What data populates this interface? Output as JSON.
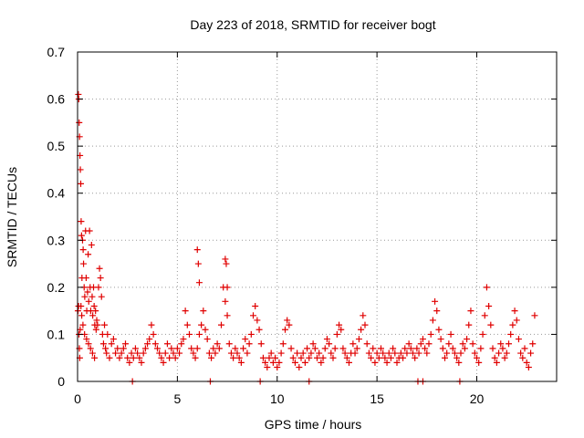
{
  "chart_data": {
    "type": "scatter",
    "title": "Day 223 of 2018, SRMTID for receiver bogt",
    "xlabel": "GPS time / hours",
    "ylabel": "SRMTID / TECUs",
    "xlim": [
      0,
      24
    ],
    "ylim": [
      0,
      0.7
    ],
    "xticks": [
      0,
      5,
      10,
      15,
      20
    ],
    "yticks": [
      0,
      0.1,
      0.2,
      0.3,
      0.4,
      0.5,
      0.6,
      0.7
    ],
    "xtick_labels": [
      "0",
      "5",
      "10",
      "15",
      "20"
    ],
    "ytick_labels": [
      "0",
      "0.1",
      "0.2",
      "0.3",
      "0.4",
      "0.5",
      "0.6",
      "0.7"
    ],
    "grid": true,
    "marker": "plus",
    "marker_color": "#e00000",
    "series": [
      {
        "name": "SRMTID",
        "x": [
          0.02,
          0.04,
          0.06,
          0.08,
          0.1,
          0.12,
          0.14,
          0.16,
          0.18,
          0.2,
          0.22,
          0.25,
          0.28,
          0.3,
          0.33,
          0.36,
          0.4,
          0.43,
          0.46,
          0.5,
          0.53,
          0.56,
          0.6,
          0.63,
          0.66,
          0.7,
          0.73,
          0.76,
          0.8,
          0.83,
          0.86,
          0.9,
          0.93,
          0.96,
          1.0,
          1.05,
          1.1,
          1.15,
          1.2,
          1.25,
          1.3,
          1.35,
          1.4,
          1.45,
          1.5,
          1.6,
          1.7,
          1.8,
          1.9,
          2.0,
          2.1,
          2.2,
          2.3,
          2.4,
          2.5,
          2.6,
          2.7,
          2.8,
          2.9,
          3.0,
          3.1,
          3.2,
          3.3,
          3.4,
          3.5,
          3.6,
          3.7,
          3.8,
          3.9,
          4.0,
          4.1,
          4.2,
          4.3,
          4.4,
          4.5,
          4.6,
          4.7,
          4.8,
          4.9,
          5.0,
          5.1,
          5.2,
          5.3,
          5.4,
          5.5,
          5.6,
          5.7,
          5.8,
          5.9,
          6.0,
          6.1,
          6.2,
          6.3,
          6.4,
          6.5,
          6.6,
          6.7,
          6.8,
          6.9,
          7.0,
          7.1,
          7.2,
          7.3,
          7.4,
          7.5,
          7.6,
          7.7,
          7.8,
          7.9,
          8.0,
          8.1,
          8.2,
          8.3,
          8.4,
          8.5,
          8.6,
          8.7,
          8.8,
          8.9,
          9.0,
          9.1,
          9.2,
          9.3,
          9.4,
          9.5,
          9.6,
          9.7,
          9.8,
          9.9,
          10.0,
          10.1,
          10.2,
          10.3,
          10.4,
          10.5,
          10.6,
          10.7,
          10.8,
          10.9,
          11.0,
          11.1,
          11.2,
          11.3,
          11.4,
          11.5,
          11.6,
          11.7,
          11.8,
          11.9,
          12.0,
          12.1,
          12.2,
          12.3,
          12.4,
          12.5,
          12.6,
          12.7,
          12.8,
          12.9,
          13.0,
          13.1,
          13.2,
          13.3,
          13.4,
          13.5,
          13.6,
          13.7,
          13.8,
          13.9,
          14.0,
          14.1,
          14.2,
          14.3,
          14.4,
          14.5,
          14.6,
          14.7,
          14.8,
          14.9,
          15.0,
          15.1,
          15.2,
          15.3,
          15.4,
          15.5,
          15.6,
          15.7,
          15.8,
          15.9,
          16.0,
          16.1,
          16.2,
          16.3,
          16.4,
          16.5,
          16.6,
          16.7,
          16.8,
          16.9,
          17.0,
          17.1,
          17.2,
          17.3,
          17.4,
          17.5,
          17.6,
          17.7,
          17.8,
          17.9,
          18.0,
          18.1,
          18.2,
          18.3,
          18.4,
          18.5,
          18.6,
          18.7,
          18.8,
          18.9,
          19.0,
          19.1,
          19.2,
          19.3,
          19.4,
          19.5,
          19.6,
          19.7,
          19.8,
          19.9,
          20.0,
          20.1,
          20.2,
          20.3,
          20.4,
          20.5,
          20.6,
          20.7,
          20.8,
          20.9,
          21.0,
          21.1,
          21.2,
          21.3,
          21.4,
          21.5,
          21.6,
          21.7,
          21.8,
          21.9,
          22.0,
          22.1,
          22.2,
          22.3,
          22.4,
          22.5,
          22.6,
          22.7,
          22.8,
          22.9,
          0.05,
          0.07,
          0.09,
          0.11,
          0.13,
          0.17,
          0.21,
          0.27,
          0.35,
          0.45,
          0.55,
          0.65,
          0.75,
          0.85,
          6.0,
          6.05,
          6.1,
          7.4,
          7.45,
          7.5,
          2.75,
          6.65,
          9.15,
          11.6,
          17.05,
          17.3,
          19.15
        ],
        "y": [
          0.15,
          0.61,
          0.6,
          0.55,
          0.52,
          0.48,
          0.45,
          0.42,
          0.34,
          0.31,
          0.22,
          0.3,
          0.28,
          0.25,
          0.2,
          0.18,
          0.32,
          0.22,
          0.15,
          0.19,
          0.27,
          0.17,
          0.32,
          0.2,
          0.15,
          0.29,
          0.18,
          0.14,
          0.2,
          0.16,
          0.12,
          0.15,
          0.11,
          0.13,
          0.12,
          0.2,
          0.24,
          0.22,
          0.18,
          0.1,
          0.08,
          0.12,
          0.07,
          0.06,
          0.1,
          0.05,
          0.08,
          0.09,
          0.06,
          0.07,
          0.05,
          0.06,
          0.07,
          0.08,
          0.05,
          0.04,
          0.06,
          0.05,
          0.07,
          0.06,
          0.05,
          0.04,
          0.06,
          0.07,
          0.08,
          0.09,
          0.12,
          0.1,
          0.08,
          0.07,
          0.06,
          0.05,
          0.04,
          0.06,
          0.08,
          0.05,
          0.07,
          0.06,
          0.05,
          0.07,
          0.06,
          0.08,
          0.09,
          0.15,
          0.12,
          0.1,
          0.07,
          0.06,
          0.05,
          0.07,
          0.1,
          0.12,
          0.15,
          0.11,
          0.09,
          0.06,
          0.05,
          0.07,
          0.06,
          0.08,
          0.07,
          0.12,
          0.2,
          0.17,
          0.14,
          0.08,
          0.06,
          0.05,
          0.07,
          0.06,
          0.05,
          0.04,
          0.07,
          0.09,
          0.06,
          0.08,
          0.1,
          0.14,
          0.16,
          0.13,
          0.11,
          0.08,
          0.05,
          0.04,
          0.03,
          0.05,
          0.06,
          0.04,
          0.05,
          0.03,
          0.04,
          0.06,
          0.08,
          0.11,
          0.13,
          0.12,
          0.07,
          0.05,
          0.04,
          0.06,
          0.03,
          0.05,
          0.06,
          0.04,
          0.07,
          0.05,
          0.06,
          0.08,
          0.07,
          0.05,
          0.06,
          0.04,
          0.05,
          0.07,
          0.09,
          0.08,
          0.06,
          0.05,
          0.07,
          0.1,
          0.12,
          0.11,
          0.07,
          0.06,
          0.05,
          0.04,
          0.06,
          0.08,
          0.06,
          0.07,
          0.09,
          0.11,
          0.14,
          0.12,
          0.08,
          0.06,
          0.05,
          0.07,
          0.04,
          0.06,
          0.05,
          0.07,
          0.06,
          0.05,
          0.04,
          0.06,
          0.05,
          0.07,
          0.06,
          0.04,
          0.05,
          0.06,
          0.05,
          0.07,
          0.06,
          0.08,
          0.07,
          0.06,
          0.05,
          0.07,
          0.06,
          0.08,
          0.09,
          0.07,
          0.06,
          0.08,
          0.1,
          0.13,
          0.17,
          0.15,
          0.11,
          0.09,
          0.07,
          0.05,
          0.06,
          0.08,
          0.1,
          0.07,
          0.06,
          0.05,
          0.04,
          0.06,
          0.08,
          0.07,
          0.09,
          0.12,
          0.15,
          0.08,
          0.06,
          0.05,
          0.04,
          0.07,
          0.1,
          0.14,
          0.2,
          0.16,
          0.12,
          0.07,
          0.05,
          0.04,
          0.06,
          0.08,
          0.07,
          0.05,
          0.06,
          0.08,
          0.1,
          0.12,
          0.15,
          0.13,
          0.09,
          0.06,
          0.05,
          0.07,
          0.04,
          0.03,
          0.06,
          0.08,
          0.14,
          0.16,
          0.1,
          0.07,
          0.05,
          0.11,
          0.16,
          0.14,
          0.12,
          0.1,
          0.09,
          0.08,
          0.07,
          0.06,
          0.05,
          0.28,
          0.25,
          0.21,
          0.26,
          0.25,
          0.2,
          0.0,
          0.0,
          0.0,
          0.0,
          0.0,
          0.0,
          0.0
        ]
      }
    ]
  }
}
